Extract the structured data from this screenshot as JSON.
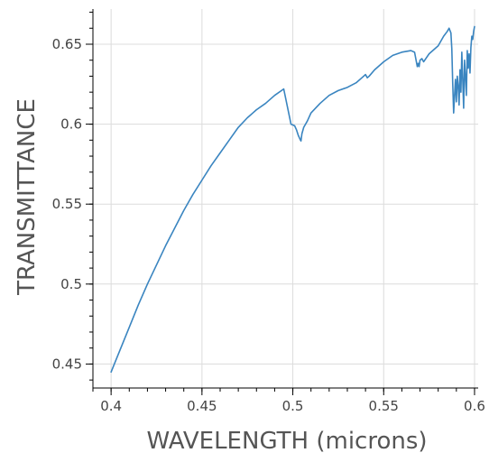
{
  "chart_data": {
    "type": "line",
    "title": "",
    "xlabel": "WAVELENGTH (microns)",
    "ylabel": "TRANSMITTANCE",
    "xlim": [
      0.39,
      0.602
    ],
    "ylim": [
      0.435,
      0.672
    ],
    "grid": true,
    "legend": "none",
    "x_ticks": [
      {
        "value": 0.4,
        "label": "0.4"
      },
      {
        "value": 0.45,
        "label": "0.45"
      },
      {
        "value": 0.5,
        "label": "0.5"
      },
      {
        "value": 0.55,
        "label": "0.55"
      },
      {
        "value": 0.6,
        "label": "0.6"
      }
    ],
    "y_ticks": [
      {
        "value": 0.45,
        "label": "0.45"
      },
      {
        "value": 0.5,
        "label": "0.5"
      },
      {
        "value": 0.55,
        "label": "0.55"
      },
      {
        "value": 0.6,
        "label": "0.6"
      },
      {
        "value": 0.65,
        "label": "0.65"
      }
    ],
    "series": [
      {
        "color": "#3a85c0",
        "x": [
          0.4,
          0.405,
          0.41,
          0.415,
          0.42,
          0.425,
          0.43,
          0.435,
          0.44,
          0.443,
          0.445,
          0.45,
          0.455,
          0.46,
          0.465,
          0.47,
          0.475,
          0.478,
          0.48,
          0.485,
          0.49,
          0.495,
          0.499,
          0.501,
          0.502,
          0.503,
          0.504,
          0.5045,
          0.505,
          0.506,
          0.508,
          0.51,
          0.515,
          0.52,
          0.525,
          0.53,
          0.535,
          0.538,
          0.54,
          0.541,
          0.542,
          0.545,
          0.55,
          0.555,
          0.56,
          0.565,
          0.567,
          0.5685,
          0.569,
          0.5695,
          0.57,
          0.571,
          0.572,
          0.575,
          0.58,
          0.583,
          0.585,
          0.586,
          0.587,
          0.5875,
          0.588,
          0.5885,
          0.589,
          0.5895,
          0.59,
          0.5905,
          0.591,
          0.5915,
          0.592,
          0.5925,
          0.593,
          0.5935,
          0.594,
          0.5945,
          0.595,
          0.5955,
          0.596,
          0.5965,
          0.597,
          0.5975,
          0.598,
          0.5985,
          0.599,
          0.5995,
          0.6
        ],
        "y": [
          0.445,
          0.459,
          0.473,
          0.487,
          0.5,
          0.512,
          0.524,
          0.535,
          0.546,
          0.552,
          0.556,
          0.565,
          0.574,
          0.582,
          0.59,
          0.598,
          0.604,
          0.607,
          0.609,
          0.613,
          0.618,
          0.622,
          0.6,
          0.599,
          0.5965,
          0.593,
          0.5905,
          0.5895,
          0.594,
          0.598,
          0.602,
          0.607,
          0.613,
          0.618,
          0.621,
          0.623,
          0.626,
          0.629,
          0.631,
          0.629,
          0.63,
          0.634,
          0.639,
          0.643,
          0.645,
          0.646,
          0.645,
          0.636,
          0.638,
          0.636,
          0.64,
          0.641,
          0.639,
          0.644,
          0.649,
          0.655,
          0.658,
          0.66,
          0.657,
          0.647,
          0.625,
          0.607,
          0.618,
          0.628,
          0.614,
          0.63,
          0.624,
          0.612,
          0.634,
          0.62,
          0.645,
          0.628,
          0.61,
          0.64,
          0.63,
          0.618,
          0.646,
          0.635,
          0.644,
          0.632,
          0.648,
          0.655,
          0.653,
          0.658,
          0.661
        ]
      }
    ]
  }
}
